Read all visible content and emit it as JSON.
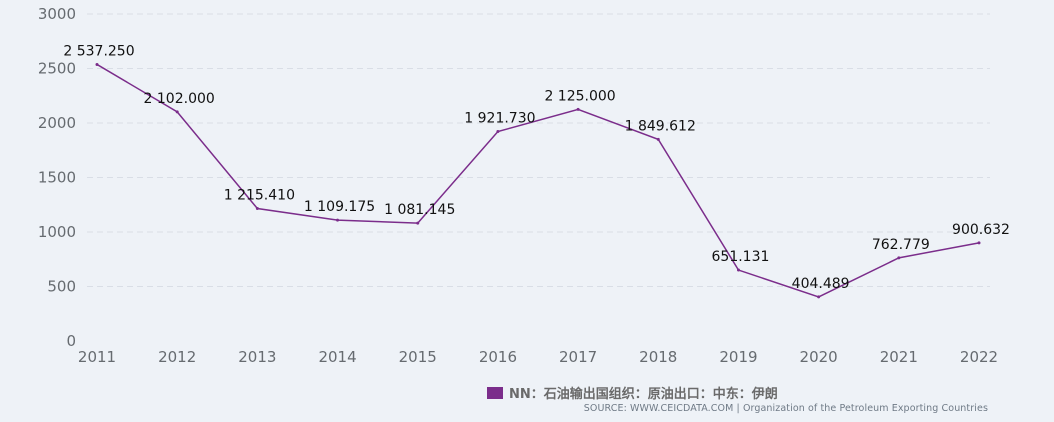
{
  "chart_data": {
    "type": "line",
    "categories": [
      "2011",
      "2012",
      "2013",
      "2014",
      "2015",
      "2016",
      "2017",
      "2018",
      "2019",
      "2020",
      "2021",
      "2022"
    ],
    "series": [
      {
        "name": "NN：石油输出国组织：原油出口：中东：伊朗",
        "values": [
          2537.25,
          2102.0,
          1215.41,
          1109.175,
          1081.145,
          1921.73,
          2125.0,
          1849.612,
          651.131,
          404.489,
          762.779,
          900.632
        ],
        "labels": [
          "2 537.250",
          "2 102.000",
          "1 215.410",
          "1 109.175",
          "1 081.145",
          "1 921.730",
          "2 125.000",
          "1 849.612",
          "651.131",
          "404.489",
          "762.779",
          "900.632"
        ],
        "color": "#7b2d8b"
      }
    ],
    "yticks": [
      "0",
      "500",
      "1000",
      "1500",
      "2000",
      "2500",
      "3000"
    ],
    "ylim": [
      0,
      3000
    ],
    "grid": true,
    "legend_position": "bottom"
  },
  "legend": {
    "label": "NN：石油输出国组织：原油出口：中东：伊朗",
    "color": "#7b2d8b"
  },
  "source": {
    "text": "SOURCE: WWW.CEICDATA.COM | Organization of the Petroleum Exporting Countries"
  }
}
